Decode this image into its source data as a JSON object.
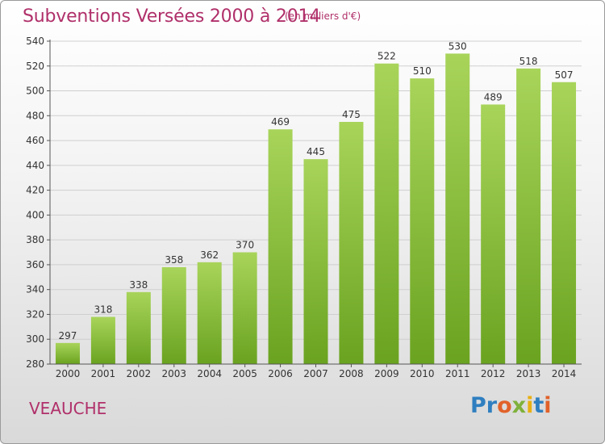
{
  "header": {
    "title": "Subventions Versées 2000 à 2014",
    "subtitle": "(en milliers d'€)"
  },
  "footer": {
    "city": "VEAUCHE",
    "logo": "Proxiti"
  },
  "colors": {
    "bar_light": "#a8d45a",
    "bar_dark": "#6aa320",
    "title": "#b0306a"
  },
  "chart_data": {
    "type": "bar",
    "categories": [
      "2000",
      "2001",
      "2002",
      "2003",
      "2004",
      "2005",
      "2006",
      "2007",
      "2008",
      "2009",
      "2010",
      "2011",
      "2012",
      "2013",
      "2014"
    ],
    "values": [
      297,
      318,
      338,
      358,
      362,
      370,
      469,
      445,
      475,
      522,
      510,
      530,
      489,
      518,
      507
    ],
    "title": "Subventions Versées 2000 à 2014",
    "ylim": [
      280,
      540
    ],
    "yticks": [
      280,
      300,
      320,
      340,
      360,
      380,
      400,
      420,
      440,
      460,
      480,
      500,
      520,
      540
    ],
    "grid": true
  }
}
